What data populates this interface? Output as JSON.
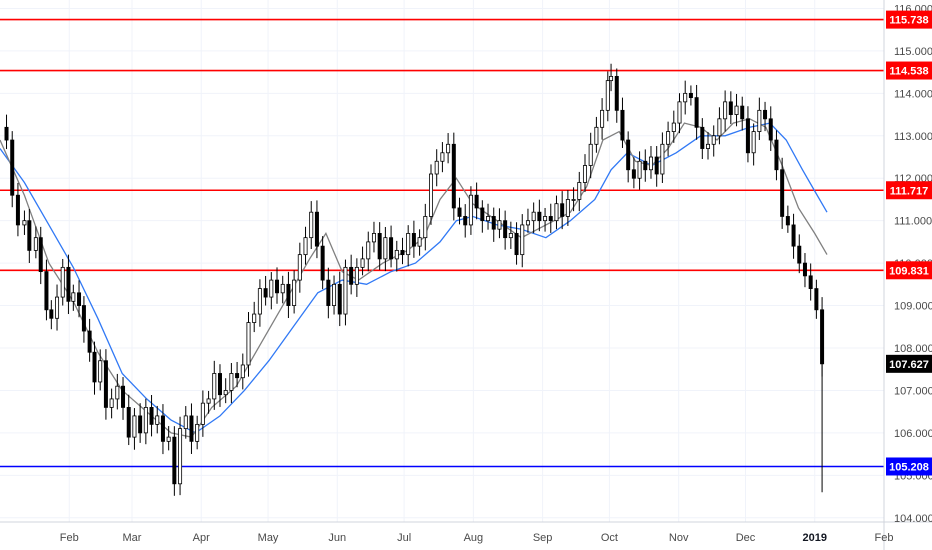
{
  "chart_data": {
    "type": "candlestick",
    "ylim": [
      103.9,
      116.2
    ],
    "y_ticks": [
      "104.000",
      "105.000",
      "106.000",
      "107.000",
      "108.000",
      "109.000",
      "110.000",
      "111.000",
      "112.000",
      "113.000",
      "114.000",
      "115.000",
      "116.000"
    ],
    "x_ticks": [
      {
        "label": "Feb",
        "x": 2018.085
      },
      {
        "label": "Mar",
        "x": 2018.162
      },
      {
        "label": "Apr",
        "x": 2018.247
      },
      {
        "label": "May",
        "x": 2018.329
      },
      {
        "label": "Jun",
        "x": 2018.414
      },
      {
        "label": "Jul",
        "x": 2018.496
      },
      {
        "label": "Aug",
        "x": 2018.581
      },
      {
        "label": "Sep",
        "x": 2018.666
      },
      {
        "label": "Oct",
        "x": 2018.748
      },
      {
        "label": "Nov",
        "x": 2018.833
      },
      {
        "label": "Dec",
        "x": 2018.915
      },
      {
        "label": "2019",
        "x": 2019.0,
        "bold": true
      },
      {
        "label": "Feb",
        "x": 2019.085
      }
    ],
    "xlim": [
      2018.0,
      2019.085
    ],
    "price_levels": [
      {
        "label": "115.738",
        "value": 115.738,
        "color": "#ff0000"
      },
      {
        "label": "114.538",
        "value": 114.538,
        "color": "#ff0000"
      },
      {
        "label": "111.717",
        "value": 111.717,
        "color": "#ff0000"
      },
      {
        "label": "109.831",
        "value": 109.831,
        "color": "#ff0000"
      },
      {
        "label": "105.208",
        "value": 105.208,
        "color": "#0000ff"
      }
    ],
    "last_price": {
      "label": "107.627",
      "value": 107.627,
      "color": "#000000"
    },
    "close_path": [
      [
        2018.0,
        113.2
      ],
      [
        2018.008,
        112.9
      ],
      [
        2018.015,
        111.6
      ],
      [
        2018.022,
        110.9
      ],
      [
        2018.03,
        111.0
      ],
      [
        2018.036,
        110.3
      ],
      [
        2018.044,
        110.6
      ],
      [
        2018.05,
        109.8
      ],
      [
        2018.057,
        108.9
      ],
      [
        2018.063,
        108.7
      ],
      [
        2018.07,
        109.2
      ],
      [
        2018.077,
        109.9
      ],
      [
        2018.084,
        109.1
      ],
      [
        2018.09,
        109.3
      ],
      [
        2018.097,
        109.0
      ],
      [
        2018.103,
        108.4
      ],
      [
        2018.11,
        107.9
      ],
      [
        2018.116,
        107.2
      ],
      [
        2018.123,
        107.7
      ],
      [
        2018.13,
        106.6
      ],
      [
        2018.137,
        106.8
      ],
      [
        2018.144,
        107.1
      ],
      [
        2018.151,
        106.6
      ],
      [
        2018.158,
        105.9
      ],
      [
        2018.165,
        106.4
      ],
      [
        2018.172,
        106.0
      ],
      [
        2018.179,
        106.6
      ],
      [
        2018.186,
        106.2
      ],
      [
        2018.193,
        106.4
      ],
      [
        2018.2,
        105.8
      ],
      [
        2018.207,
        105.9
      ],
      [
        2018.214,
        104.8
      ],
      [
        2018.221,
        106.1
      ],
      [
        2018.228,
        106.4
      ],
      [
        2018.235,
        105.8
      ],
      [
        2018.242,
        106.2
      ],
      [
        2018.249,
        106.7
      ],
      [
        2018.256,
        106.8
      ],
      [
        2018.263,
        107.4
      ],
      [
        2018.27,
        106.9
      ],
      [
        2018.277,
        107.0
      ],
      [
        2018.284,
        107.4
      ],
      [
        2018.291,
        107.3
      ],
      [
        2018.298,
        107.6
      ],
      [
        2018.305,
        108.6
      ],
      [
        2018.312,
        108.8
      ],
      [
        2018.319,
        109.4
      ],
      [
        2018.326,
        109.2
      ],
      [
        2018.333,
        109.6
      ],
      [
        2018.34,
        109.3
      ],
      [
        2018.347,
        109.5
      ],
      [
        2018.354,
        109.0
      ],
      [
        2018.361,
        109.6
      ],
      [
        2018.368,
        110.2
      ],
      [
        2018.375,
        110.6
      ],
      [
        2018.382,
        111.2
      ],
      [
        2018.389,
        110.4
      ],
      [
        2018.396,
        109.6
      ],
      [
        2018.403,
        109.0
      ],
      [
        2018.41,
        109.5
      ],
      [
        2018.417,
        108.8
      ],
      [
        2018.424,
        109.9
      ],
      [
        2018.431,
        109.5
      ],
      [
        2018.438,
        109.9
      ],
      [
        2018.445,
        110.1
      ],
      [
        2018.452,
        110.5
      ],
      [
        2018.459,
        110.7
      ],
      [
        2018.466,
        110.1
      ],
      [
        2018.473,
        110.6
      ],
      [
        2018.48,
        110.1
      ],
      [
        2018.487,
        110.3
      ],
      [
        2018.494,
        110.2
      ],
      [
        2018.501,
        110.7
      ],
      [
        2018.508,
        110.4
      ],
      [
        2018.515,
        110.6
      ],
      [
        2018.522,
        111.1
      ],
      [
        2018.529,
        112.1
      ],
      [
        2018.536,
        112.4
      ],
      [
        2018.543,
        112.6
      ],
      [
        2018.55,
        112.8
      ],
      [
        2018.557,
        111.3
      ],
      [
        2018.564,
        111.1
      ],
      [
        2018.571,
        110.9
      ],
      [
        2018.578,
        111.6
      ],
      [
        2018.585,
        111.3
      ],
      [
        2018.592,
        111.0
      ],
      [
        2018.599,
        111.1
      ],
      [
        2018.606,
        110.8
      ],
      [
        2018.613,
        111.0
      ],
      [
        2018.62,
        110.6
      ],
      [
        2018.627,
        110.7
      ],
      [
        2018.634,
        110.2
      ],
      [
        2018.641,
        110.9
      ],
      [
        2018.648,
        111.0
      ],
      [
        2018.655,
        111.2
      ],
      [
        2018.662,
        111.0
      ],
      [
        2018.669,
        111.1
      ],
      [
        2018.676,
        111.0
      ],
      [
        2018.683,
        111.4
      ],
      [
        2018.69,
        111.1
      ],
      [
        2018.697,
        111.5
      ],
      [
        2018.704,
        111.5
      ],
      [
        2018.711,
        111.9
      ],
      [
        2018.718,
        112.3
      ],
      [
        2018.725,
        112.8
      ],
      [
        2018.732,
        113.2
      ],
      [
        2018.739,
        113.6
      ],
      [
        2018.746,
        114.3
      ],
      [
        2018.75,
        114.4
      ],
      [
        2018.757,
        113.6
      ],
      [
        2018.764,
        112.9
      ],
      [
        2018.771,
        112.2
      ],
      [
        2018.778,
        112.0
      ],
      [
        2018.785,
        112.4
      ],
      [
        2018.792,
        112.2
      ],
      [
        2018.799,
        112.5
      ],
      [
        2018.806,
        112.1
      ],
      [
        2018.813,
        112.8
      ],
      [
        2018.82,
        113.1
      ],
      [
        2018.827,
        113.3
      ],
      [
        2018.834,
        113.8
      ],
      [
        2018.841,
        114.0
      ],
      [
        2018.848,
        113.9
      ],
      [
        2018.855,
        113.2
      ],
      [
        2018.862,
        112.7
      ],
      [
        2018.869,
        112.8
      ],
      [
        2018.876,
        113.0
      ],
      [
        2018.883,
        113.4
      ],
      [
        2018.89,
        113.8
      ],
      [
        2018.897,
        113.5
      ],
      [
        2018.904,
        113.7
      ],
      [
        2018.911,
        113.4
      ],
      [
        2018.918,
        112.6
      ],
      [
        2018.925,
        113.1
      ],
      [
        2018.932,
        113.6
      ],
      [
        2018.939,
        113.4
      ],
      [
        2018.946,
        112.9
      ],
      [
        2018.953,
        112.2
      ],
      [
        2018.96,
        111.1
      ],
      [
        2018.967,
        110.9
      ],
      [
        2018.974,
        110.4
      ],
      [
        2018.981,
        110.0
      ],
      [
        2018.988,
        109.7
      ],
      [
        2018.995,
        109.4
      ],
      [
        2019.002,
        108.9
      ],
      [
        2019.009,
        107.627
      ]
    ],
    "ma_fast": [
      [
        2018.0,
        112.9
      ],
      [
        2018.03,
        111.6
      ],
      [
        2018.06,
        110.0
      ],
      [
        2018.09,
        109.1
      ],
      [
        2018.12,
        107.9
      ],
      [
        2018.15,
        107.0
      ],
      [
        2018.18,
        106.5
      ],
      [
        2018.21,
        106.0
      ],
      [
        2018.235,
        105.9
      ],
      [
        2018.26,
        106.6
      ],
      [
        2018.29,
        107.1
      ],
      [
        2018.32,
        108.1
      ],
      [
        2018.35,
        109.1
      ],
      [
        2018.38,
        110.1
      ],
      [
        2018.4,
        110.7
      ],
      [
        2018.42,
        109.8
      ],
      [
        2018.44,
        109.6
      ],
      [
        2018.47,
        110.0
      ],
      [
        2018.5,
        110.3
      ],
      [
        2018.52,
        110.6
      ],
      [
        2018.54,
        111.5
      ],
      [
        2018.56,
        112.0
      ],
      [
        2018.58,
        111.4
      ],
      [
        2018.61,
        111.0
      ],
      [
        2018.64,
        110.6
      ],
      [
        2018.67,
        110.9
      ],
      [
        2018.7,
        111.2
      ],
      [
        2018.72,
        111.8
      ],
      [
        2018.74,
        112.9
      ],
      [
        2018.76,
        113.1
      ],
      [
        2018.78,
        112.4
      ],
      [
        2018.8,
        112.3
      ],
      [
        2018.82,
        112.7
      ],
      [
        2018.84,
        113.3
      ],
      [
        2018.86,
        113.2
      ],
      [
        2018.88,
        112.9
      ],
      [
        2018.9,
        113.3
      ],
      [
        2018.92,
        113.4
      ],
      [
        2018.94,
        113.2
      ],
      [
        2018.96,
        112.3
      ],
      [
        2018.98,
        111.3
      ],
      [
        2019.0,
        110.7
      ],
      [
        2019.015,
        110.2
      ]
    ],
    "ma_slow": [
      [
        2018.0,
        112.7
      ],
      [
        2018.03,
        111.9
      ],
      [
        2018.06,
        110.9
      ],
      [
        2018.09,
        109.9
      ],
      [
        2018.12,
        108.7
      ],
      [
        2018.15,
        107.4
      ],
      [
        2018.18,
        106.8
      ],
      [
        2018.21,
        106.3
      ],
      [
        2018.24,
        106.0
      ],
      [
        2018.27,
        106.4
      ],
      [
        2018.3,
        107.0
      ],
      [
        2018.33,
        107.7
      ],
      [
        2018.36,
        108.5
      ],
      [
        2018.39,
        109.3
      ],
      [
        2018.42,
        109.6
      ],
      [
        2018.45,
        109.5
      ],
      [
        2018.48,
        109.8
      ],
      [
        2018.51,
        110.0
      ],
      [
        2018.54,
        110.5
      ],
      [
        2018.56,
        111.0
      ],
      [
        2018.58,
        111.1
      ],
      [
        2018.61,
        110.9
      ],
      [
        2018.64,
        110.8
      ],
      [
        2018.67,
        110.6
      ],
      [
        2018.7,
        111.0
      ],
      [
        2018.73,
        111.5
      ],
      [
        2018.75,
        112.2
      ],
      [
        2018.77,
        112.6
      ],
      [
        2018.8,
        112.3
      ],
      [
        2018.83,
        112.6
      ],
      [
        2018.86,
        113.0
      ],
      [
        2018.89,
        113.0
      ],
      [
        2018.92,
        113.2
      ],
      [
        2018.945,
        113.3
      ],
      [
        2018.965,
        112.9
      ],
      [
        2018.985,
        112.2
      ],
      [
        2019.0,
        111.7
      ],
      [
        2019.015,
        111.2
      ]
    ],
    "colors": {
      "candle": "#000000",
      "ma_fast": "#808080",
      "ma_slow": "#3179f5",
      "grid": "#f0f3fa",
      "axis_text": "#4a4a4a"
    }
  }
}
